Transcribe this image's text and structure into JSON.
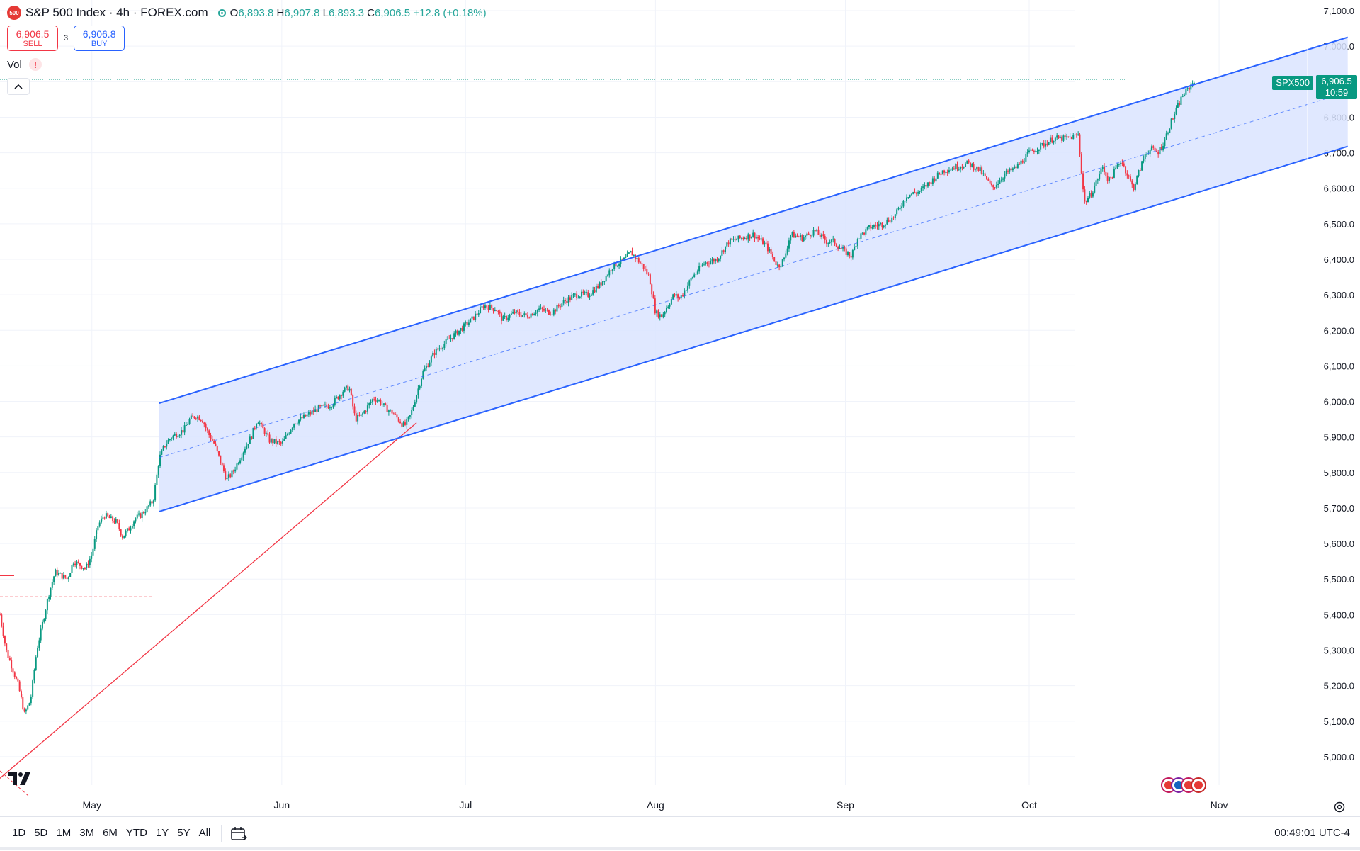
{
  "header": {
    "symbol_badge": "500",
    "title": "S&P 500 Index · 4h · FOREX.com",
    "ohlc": {
      "o_label": "O",
      "o": "6,893.8",
      "h_label": "H",
      "h": "6,907.8",
      "l_label": "L",
      "l": "6,893.3",
      "c_label": "C",
      "c": "6,906.5",
      "change": "+12.8 (+0.18%)"
    }
  },
  "trade": {
    "sell_price": "6,906.5",
    "sell_label": "SELL",
    "spread": "3",
    "buy_price": "6,906.8",
    "buy_label": "BUY"
  },
  "indicators": {
    "vol_label": "Vol",
    "warning": "!"
  },
  "collapse_icon": "chevron-up-icon",
  "price_scale": {
    "symbol_tag": "SPX500",
    "last_price": "6,906.5",
    "countdown": "10:59"
  },
  "bottom_bar": {
    "ranges": [
      "1D",
      "5D",
      "1M",
      "3M",
      "6M",
      "YTD",
      "1Y",
      "5Y",
      "All"
    ],
    "time": "00:49:01 UTC-4"
  },
  "colors": {
    "up": "#089981",
    "down": "#f23645",
    "channel": "#2962ff",
    "channel_fill": "#dbe4ff",
    "trend": "#f23645"
  },
  "chart_data": {
    "type": "candlestick",
    "title": "S&P 500 Index · 4h · FOREX.com",
    "y_ticks": [
      5000,
      5100,
      5200,
      5300,
      5400,
      5500,
      5600,
      5700,
      5800,
      5900,
      6000,
      6100,
      6200,
      6300,
      6400,
      6500,
      6600,
      6700,
      6800,
      6900,
      7000,
      7100
    ],
    "y_tick_labels": [
      "5,000.0",
      "5,100.0",
      "5,200.0",
      "5,300.0",
      "5,400.0",
      "5,500.0",
      "5,600.0",
      "5,700.0",
      "5,800.0",
      "5,900.0",
      "6,000.0",
      "6,100.0",
      "6,200.0",
      "6,300.0",
      "6,400.0",
      "6,500.0",
      "6,600.0",
      "6,700.0",
      "6,800.0",
      "6,900.0",
      "7,000.0",
      "7,100.0"
    ],
    "ylim": [
      4920,
      7130
    ],
    "x_ticks": [
      {
        "label": "May",
        "date": "2025-05-01"
      },
      {
        "label": "Jun",
        "date": "2025-06-01"
      },
      {
        "label": "Jul",
        "date": "2025-07-01"
      },
      {
        "label": "Aug",
        "date": "2025-08-01"
      },
      {
        "label": "Sep",
        "date": "2025-09-01"
      },
      {
        "label": "Oct",
        "date": "2025-10-01"
      },
      {
        "label": "Nov",
        "date": "2025-11-01"
      }
    ],
    "xlim": [
      "2025-04-16",
      "2025-11-24"
    ],
    "close_path": [
      [
        "2025-04-16",
        5400
      ],
      [
        "2025-04-17",
        5300
      ],
      [
        "2025-04-18",
        5250
      ],
      [
        "2025-04-19",
        5200
      ],
      [
        "2025-04-20",
        5120
      ],
      [
        "2025-04-21",
        5160
      ],
      [
        "2025-04-22",
        5300
      ],
      [
        "2025-04-23",
        5380
      ],
      [
        "2025-04-24",
        5460
      ],
      [
        "2025-04-25",
        5520
      ],
      [
        "2025-04-27",
        5500
      ],
      [
        "2025-04-28",
        5550
      ],
      [
        "2025-04-30",
        5530
      ],
      [
        "2025-05-01",
        5570
      ],
      [
        "2025-05-02",
        5650
      ],
      [
        "2025-05-03",
        5680
      ],
      [
        "2025-05-05",
        5660
      ],
      [
        "2025-05-06",
        5620
      ],
      [
        "2025-05-07",
        5640
      ],
      [
        "2025-05-08",
        5670
      ],
      [
        "2025-05-09",
        5680
      ],
      [
        "2025-05-10",
        5700
      ],
      [
        "2025-05-11",
        5720
      ],
      [
        "2025-05-12",
        5840
      ],
      [
        "2025-05-13",
        5880
      ],
      [
        "2025-05-14",
        5900
      ],
      [
        "2025-05-15",
        5910
      ],
      [
        "2025-05-16",
        5920
      ],
      [
        "2025-05-17",
        5950
      ],
      [
        "2025-05-18",
        5960
      ],
      [
        "2025-05-19",
        5950
      ],
      [
        "2025-05-20",
        5910
      ],
      [
        "2025-05-21",
        5880
      ],
      [
        "2025-05-22",
        5830
      ],
      [
        "2025-05-23",
        5780
      ],
      [
        "2025-05-24",
        5800
      ],
      [
        "2025-05-26",
        5870
      ],
      [
        "2025-05-27",
        5900
      ],
      [
        "2025-05-28",
        5950
      ],
      [
        "2025-05-29",
        5920
      ],
      [
        "2025-05-30",
        5890
      ],
      [
        "2025-06-01",
        5880
      ],
      [
        "2025-06-03",
        5940
      ],
      [
        "2025-06-05",
        5960
      ],
      [
        "2025-06-07",
        5980
      ],
      [
        "2025-06-09",
        5990
      ],
      [
        "2025-06-11",
        6030
      ],
      [
        "2025-06-12",
        6040
      ],
      [
        "2025-06-13",
        5950
      ],
      [
        "2025-06-14",
        5960
      ],
      [
        "2025-06-16",
        6010
      ],
      [
        "2025-06-17",
        6000
      ],
      [
        "2025-06-18",
        5980
      ],
      [
        "2025-06-19",
        5970
      ],
      [
        "2025-06-20",
        5950
      ],
      [
        "2025-06-21",
        5930
      ],
      [
        "2025-06-22",
        5960
      ],
      [
        "2025-06-24",
        6080
      ],
      [
        "2025-06-26",
        6140
      ],
      [
        "2025-06-28",
        6170
      ],
      [
        "2025-06-30",
        6200
      ],
      [
        "2025-07-02",
        6230
      ],
      [
        "2025-07-04",
        6270
      ],
      [
        "2025-07-06",
        6260
      ],
      [
        "2025-07-07",
        6230
      ],
      [
        "2025-07-09",
        6250
      ],
      [
        "2025-07-11",
        6240
      ],
      [
        "2025-07-13",
        6260
      ],
      [
        "2025-07-15",
        6250
      ],
      [
        "2025-07-17",
        6280
      ],
      [
        "2025-07-19",
        6300
      ],
      [
        "2025-07-21",
        6300
      ],
      [
        "2025-07-23",
        6330
      ],
      [
        "2025-07-25",
        6380
      ],
      [
        "2025-07-27",
        6400
      ],
      [
        "2025-07-28",
        6420
      ],
      [
        "2025-07-30",
        6380
      ],
      [
        "2025-07-31",
        6350
      ],
      [
        "2025-08-01",
        6250
      ],
      [
        "2025-08-02",
        6240
      ],
      [
        "2025-08-04",
        6300
      ],
      [
        "2025-08-05",
        6290
      ],
      [
        "2025-08-07",
        6350
      ],
      [
        "2025-08-09",
        6390
      ],
      [
        "2025-08-11",
        6400
      ],
      [
        "2025-08-13",
        6450
      ],
      [
        "2025-08-15",
        6460
      ],
      [
        "2025-08-17",
        6470
      ],
      [
        "2025-08-19",
        6440
      ],
      [
        "2025-08-21",
        6380
      ],
      [
        "2025-08-22",
        6400
      ],
      [
        "2025-08-23",
        6470
      ],
      [
        "2025-08-25",
        6460
      ],
      [
        "2025-08-27",
        6480
      ],
      [
        "2025-08-29",
        6450
      ],
      [
        "2025-08-30",
        6450
      ],
      [
        "2025-09-01",
        6420
      ],
      [
        "2025-09-02",
        6410
      ],
      [
        "2025-09-03",
        6460
      ],
      [
        "2025-09-05",
        6490
      ],
      [
        "2025-09-07",
        6500
      ],
      [
        "2025-09-09",
        6520
      ],
      [
        "2025-09-11",
        6580
      ],
      [
        "2025-09-13",
        6590
      ],
      [
        "2025-09-15",
        6620
      ],
      [
        "2025-09-17",
        6650
      ],
      [
        "2025-09-19",
        6660
      ],
      [
        "2025-09-21",
        6670
      ],
      [
        "2025-09-23",
        6650
      ],
      [
        "2025-09-25",
        6600
      ],
      [
        "2025-09-27",
        6640
      ],
      [
        "2025-09-29",
        6660
      ],
      [
        "2025-10-01",
        6700
      ],
      [
        "2025-10-03",
        6720
      ],
      [
        "2025-10-05",
        6740
      ],
      [
        "2025-10-07",
        6740
      ],
      [
        "2025-10-09",
        6750
      ],
      [
        "2025-10-10",
        6560
      ],
      [
        "2025-10-11",
        6580
      ],
      [
        "2025-10-13",
        6660
      ],
      [
        "2025-10-14",
        6620
      ],
      [
        "2025-10-16",
        6680
      ],
      [
        "2025-10-17",
        6640
      ],
      [
        "2025-10-18",
        6600
      ],
      [
        "2025-10-20",
        6700
      ],
      [
        "2025-10-21",
        6710
      ],
      [
        "2025-10-22",
        6700
      ],
      [
        "2025-10-23",
        6730
      ],
      [
        "2025-10-24",
        6780
      ],
      [
        "2025-10-26",
        6860
      ],
      [
        "2025-10-27",
        6880
      ],
      [
        "2025-10-28",
        6906.5
      ]
    ],
    "drawings": {
      "channel_upper": [
        [
          "2025-05-12",
          5995
        ],
        [
          "2025-11-22",
          7025
        ]
      ],
      "channel_lower": [
        [
          "2025-05-12",
          5690
        ],
        [
          "2025-11-22",
          6718
        ]
      ],
      "channel_mid": [
        [
          "2025-05-12",
          5842
        ],
        [
          "2025-11-22",
          6871
        ]
      ],
      "trend_line": [
        [
          "2025-04-14",
          4910
        ],
        [
          "2025-06-23",
          5940
        ]
      ],
      "red_level_dashed": 5450,
      "red_level_solid": 5510,
      "last_price_line": 6906.5
    }
  }
}
